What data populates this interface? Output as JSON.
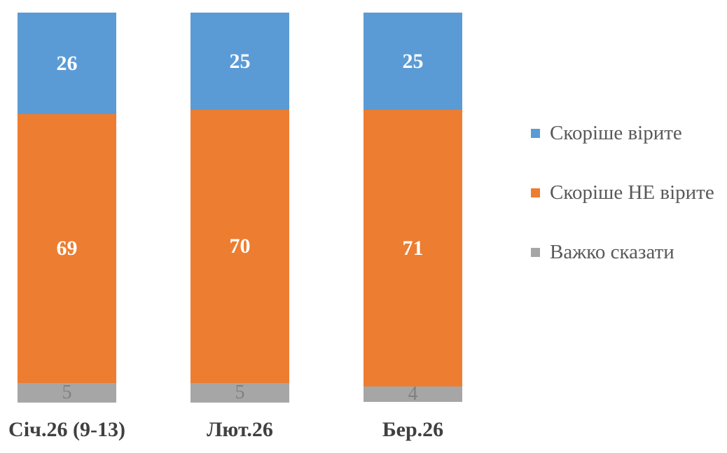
{
  "chart_data": {
    "type": "bar",
    "subtype": "stacked-100-percent",
    "orientation": "vertical",
    "title": "",
    "xlabel": "",
    "ylabel": "",
    "ylim": [
      0,
      100
    ],
    "grid": false,
    "axes_visible": false,
    "legend_position": "right",
    "background": "#FFFFFF",
    "categories": [
      "Січ.26 (9-13)",
      "Лют.26",
      "Бер.26"
    ],
    "stack_order_top_to_bottom": [
      "Скоріше вірите",
      "Скоріше НЕ вірите",
      "Важко сказати"
    ],
    "series": [
      {
        "name": "Скоріше вірите",
        "color": "#5B9BD5",
        "label_color": "#FFFFFF",
        "label_bold": true,
        "values": [
          26,
          25,
          25
        ]
      },
      {
        "name": "Скоріше НЕ вірите",
        "color": "#ED7D31",
        "label_color": "#FFFFFF",
        "label_bold": true,
        "values": [
          69,
          70,
          71
        ]
      },
      {
        "name": "Важко сказати",
        "color": "#A6A6A6",
        "label_color": "#808080",
        "label_bold": false,
        "values": [
          5,
          5,
          4
        ]
      }
    ],
    "category_label_color": "#404040",
    "legend_text_color": "#595959"
  },
  "layout_totals": {
    "bar_sums": [
      100,
      100,
      100
    ]
  }
}
